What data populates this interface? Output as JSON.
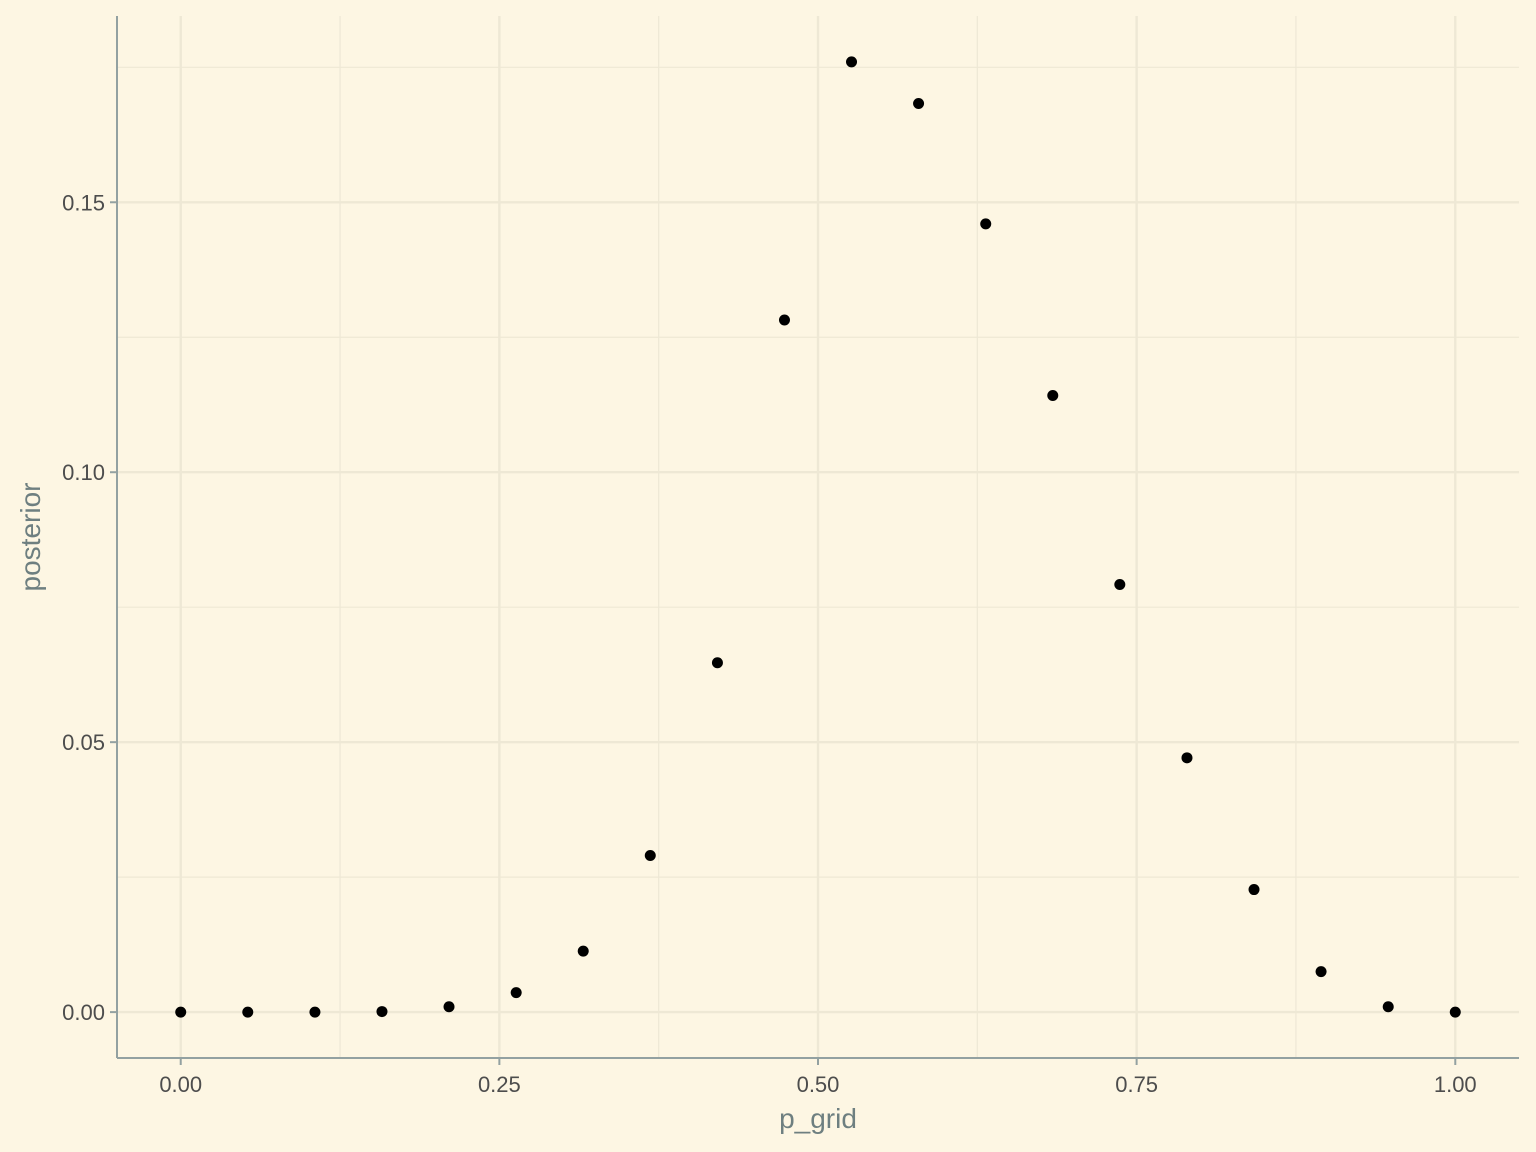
{
  "chart_data": {
    "type": "scatter",
    "title": "",
    "xlabel": "p_grid",
    "ylabel": "posterior",
    "xlim": [
      -0.05,
      1.05
    ],
    "ylim": [
      -0.0085,
      0.1845
    ],
    "x_ticks": [
      {
        "value": 0.0,
        "label": "0.00"
      },
      {
        "value": 0.25,
        "label": "0.25"
      },
      {
        "value": 0.5,
        "label": "0.50"
      },
      {
        "value": 0.75,
        "label": "0.75"
      },
      {
        "value": 1.0,
        "label": "1.00"
      }
    ],
    "y_ticks": [
      {
        "value": 0.0,
        "label": "0.00"
      },
      {
        "value": 0.05,
        "label": "0.05"
      },
      {
        "value": 0.1,
        "label": "0.10"
      },
      {
        "value": 0.15,
        "label": "0.15"
      }
    ],
    "x_minor_ticks": [
      0.125,
      0.375,
      0.625,
      0.875
    ],
    "y_minor_ticks": [
      0.025,
      0.075,
      0.125,
      0.175
    ],
    "grid": true,
    "colors": {
      "background": "#fdf6e3",
      "grid": "#eee8d5",
      "axis_line": "#93a1a1",
      "point": "#000000",
      "tick_text": "#4d4d4d",
      "axis_title": "#6e7f80"
    },
    "x": [
      0.0,
      0.0526,
      0.1053,
      0.1579,
      0.2105,
      0.2632,
      0.3158,
      0.3684,
      0.4211,
      0.4737,
      0.5263,
      0.5789,
      0.6316,
      0.6842,
      0.7368,
      0.7895,
      0.8421,
      0.8947,
      0.9474,
      1.0
    ],
    "y": [
      0.0,
      0.0,
      0.0,
      0.0001,
      0.001,
      0.0036,
      0.0113,
      0.029,
      0.0647,
      0.1282,
      0.176,
      0.1683,
      0.146,
      0.1142,
      0.0792,
      0.0471,
      0.0227,
      0.0075,
      0.001,
      0.0
    ]
  }
}
